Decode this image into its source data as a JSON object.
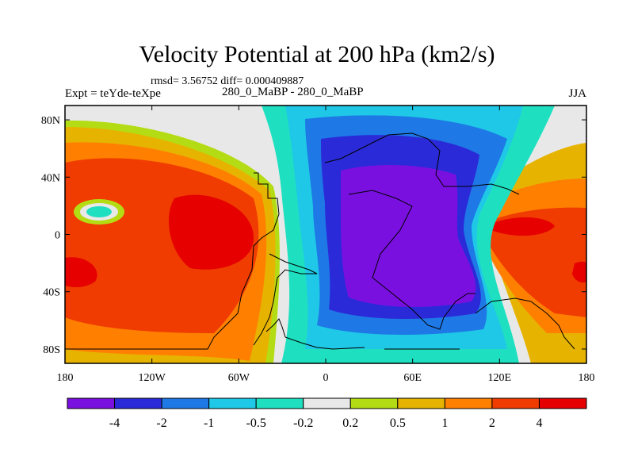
{
  "title": "Velocity Potential at 200 hPa (km2/s)",
  "stats": "rmsd= 3.56752  diff= 0.000409887",
  "left_label": "Expt = teYde-teXpe",
  "center_label": "280_0_MaBP - 280_0_MaBP",
  "right_label": "JJA",
  "chart_data": {
    "type": "heatmap",
    "title": "Velocity Potential at 200 hPa (km2/s)",
    "x": {
      "label": "",
      "range": [
        -180,
        180
      ],
      "ticks": [
        "180",
        "120W",
        "60W",
        "0",
        "60E",
        "120E",
        "180"
      ],
      "tick_values": [
        -180,
        -120,
        -60,
        0,
        60,
        120,
        180
      ]
    },
    "y": {
      "label": "",
      "range": [
        -90,
        90
      ],
      "ticks": [
        "80N",
        "40N",
        "0",
        "40S",
        "80S"
      ],
      "tick_values": [
        80,
        40,
        0,
        -40,
        -80
      ]
    },
    "colorbar": {
      "labels": [
        "-4",
        "-2",
        "-1",
        "-0.5",
        "-0.2",
        "0.2",
        "0.5",
        "1",
        "2",
        "4"
      ],
      "levels": [
        -4,
        -2,
        -1,
        -0.5,
        -0.2,
        0.2,
        0.5,
        1,
        2,
        4
      ],
      "colors": [
        "#7a10e0",
        "#2a2ad8",
        "#1e78e6",
        "#1ec8e6",
        "#1ee0c0",
        "#e8e8e8",
        "#b4dc14",
        "#e6b400",
        "#ff8000",
        "#f03c00",
        "#e60000"
      ]
    },
    "grid": false
  }
}
